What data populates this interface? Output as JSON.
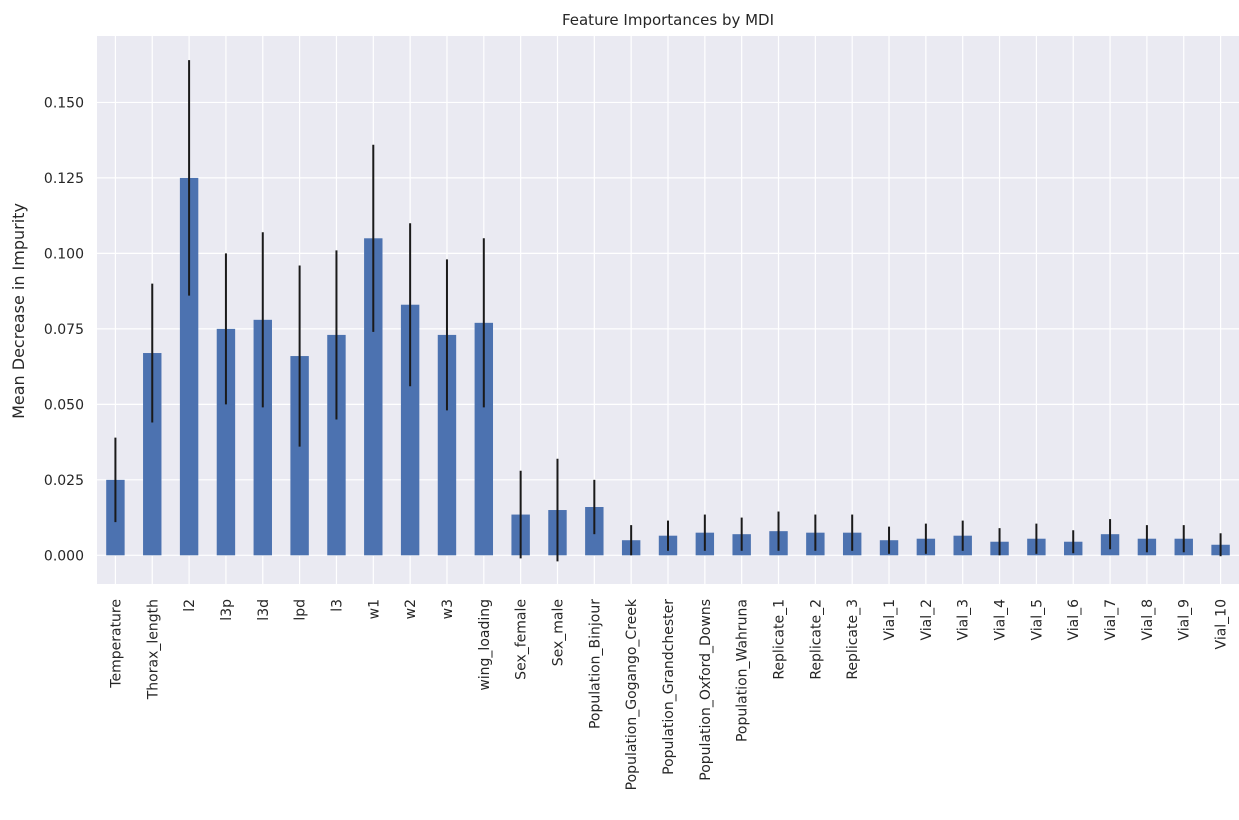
{
  "chart_data": {
    "type": "bar",
    "title": "Feature Importances by MDI",
    "xlabel": "",
    "ylabel": "Mean Decrease in Impurity",
    "ylim": [
      -0.0095,
      0.172
    ],
    "yticks": [
      "0.000",
      "0.025",
      "0.050",
      "0.075",
      "0.100",
      "0.125",
      "0.150"
    ],
    "grid": true,
    "categories": [
      "Temperature",
      "Thorax_length",
      "l2",
      "l3p",
      "l3d",
      "lpd",
      "l3",
      "w1",
      "w2",
      "w3",
      "wing_loading",
      "Sex_female",
      "Sex_male",
      "Population_Binjour",
      "Population_Gogango_Creek",
      "Population_Grandchester",
      "Population_Oxford_Downs",
      "Population_Wahruna",
      "Replicate_1",
      "Replicate_2",
      "Replicate_3",
      "Vial_1",
      "Vial_2",
      "Vial_3",
      "Vial_4",
      "Vial_5",
      "Vial_6",
      "Vial_7",
      "Vial_8",
      "Vial_9",
      "Vial_10"
    ],
    "values": [
      0.025,
      0.067,
      0.125,
      0.075,
      0.078,
      0.066,
      0.073,
      0.105,
      0.083,
      0.073,
      0.077,
      0.0135,
      0.015,
      0.016,
      0.005,
      0.0065,
      0.0075,
      0.007,
      0.008,
      0.0075,
      0.0075,
      0.005,
      0.0055,
      0.0065,
      0.0045,
      0.0055,
      0.0045,
      0.007,
      0.0055,
      0.0055,
      0.0035
    ],
    "errors": [
      0.014,
      0.023,
      0.039,
      0.025,
      0.029,
      0.03,
      0.028,
      0.031,
      0.027,
      0.025,
      0.028,
      0.0145,
      0.017,
      0.009,
      0.005,
      0.005,
      0.006,
      0.0055,
      0.0065,
      0.006,
      0.006,
      0.0045,
      0.005,
      0.005,
      0.0045,
      0.005,
      0.0038,
      0.005,
      0.0045,
      0.0045,
      0.0038
    ],
    "colors": {
      "bar": "#4c72b0",
      "error": "#1a1a1a",
      "background": "#eaeaf2",
      "grid": "#ffffff"
    }
  }
}
